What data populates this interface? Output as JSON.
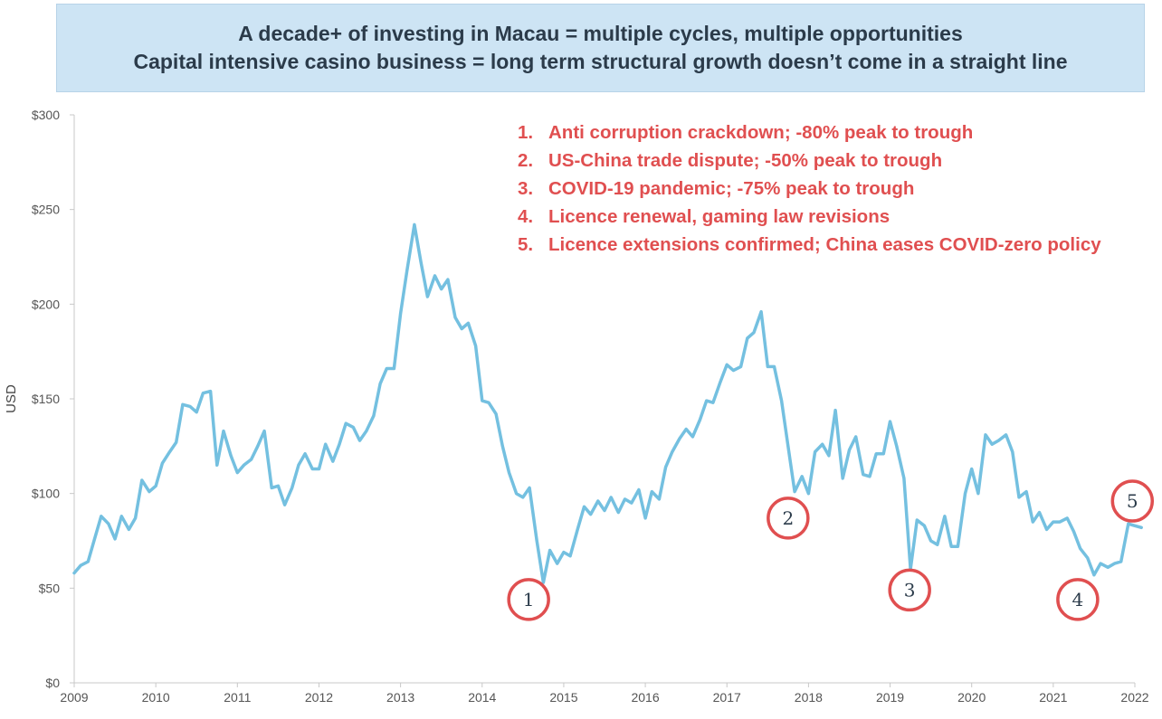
{
  "banner": {
    "line1": "A decade+ of investing in Macau = multiple cycles, multiple opportunities",
    "line2": "Capital intensive casino business = long term structural growth doesn’t come in a straight line"
  },
  "notes": [
    {
      "num": "1.",
      "text": "Anti corruption crackdown; -80% peak to trough"
    },
    {
      "num": "2.",
      "text": "US-China trade dispute; -50% peak to trough"
    },
    {
      "num": "3.",
      "text": "COVID-19 pandemic; -75% peak to trough"
    },
    {
      "num": "4.",
      "text": "Licence renewal, gaming law revisions"
    },
    {
      "num": "5.",
      "text": "Licence extensions confirmed; China eases COVID-zero policy"
    }
  ],
  "chart_data": {
    "type": "line",
    "title": "",
    "xlabel": "",
    "ylabel": "USD",
    "xlim": [
      2009,
      2022.2
    ],
    "ylim": [
      0,
      300
    ],
    "y_ticks": [
      0,
      50,
      100,
      150,
      200,
      250,
      300
    ],
    "y_tick_labels": [
      "$0",
      "$50",
      "$100",
      "$150",
      "$200",
      "$250",
      "$300"
    ],
    "x_ticks": [
      2009,
      2010,
      2011,
      2012,
      2013,
      2014,
      2015,
      2016,
      2017,
      2018,
      2019,
      2020,
      2021,
      2022
    ],
    "x_tick_labels": [
      "2009",
      "2010",
      "2011",
      "2012",
      "2013",
      "2014",
      "2015",
      "2016",
      "2017",
      "2018",
      "2019",
      "2020",
      "2021",
      "2022"
    ],
    "grid": false,
    "line_color": "#74c0e0",
    "series": [
      {
        "x": [
          2009.0,
          2009.08,
          2009.17,
          2009.25,
          2009.33,
          2009.42,
          2009.5,
          2009.58,
          2009.67,
          2009.75,
          2009.83,
          2009.92,
          2010.0,
          2010.08,
          2010.17,
          2010.25,
          2010.33,
          2010.42,
          2010.5,
          2010.58,
          2010.67,
          2010.75,
          2010.83,
          2010.92,
          2011.0,
          2011.08,
          2011.17,
          2011.25,
          2011.33,
          2011.42,
          2011.5,
          2011.58,
          2011.67,
          2011.75,
          2011.83,
          2011.92,
          2012.0,
          2012.08,
          2012.17,
          2012.25,
          2012.33,
          2012.42,
          2012.5,
          2012.58,
          2012.67,
          2012.75,
          2012.83,
          2012.92,
          2013.0,
          2013.08,
          2013.17,
          2013.25,
          2013.33,
          2013.42,
          2013.5,
          2013.58,
          2013.67,
          2013.75,
          2013.83,
          2013.92,
          2014.0,
          2014.08,
          2014.17,
          2014.25,
          2014.33,
          2014.42,
          2014.5,
          2014.58,
          2014.67,
          2014.75,
          2014.83,
          2014.92,
          2015.0,
          2015.08,
          2015.17,
          2015.25,
          2015.33,
          2015.42,
          2015.5,
          2015.58,
          2015.67,
          2015.75,
          2015.83,
          2015.92,
          2016.0,
          2016.08,
          2016.17,
          2016.25,
          2016.33,
          2016.42,
          2016.5,
          2016.58,
          2016.67,
          2016.75,
          2016.83,
          2016.92,
          2017.0,
          2017.08,
          2017.17,
          2017.25,
          2017.33,
          2017.42,
          2017.5,
          2017.58,
          2017.67,
          2017.75,
          2017.83,
          2017.92,
          2018.0,
          2018.08,
          2018.17,
          2018.25,
          2018.33,
          2018.42,
          2018.5,
          2018.58,
          2018.67,
          2018.75,
          2018.83,
          2018.92,
          2019.0,
          2019.08,
          2019.17,
          2019.25,
          2019.33,
          2019.42,
          2019.5,
          2019.58,
          2019.67,
          2019.75,
          2019.83,
          2019.92,
          2020.0,
          2020.08,
          2020.17,
          2020.25,
          2020.33,
          2020.42,
          2020.5,
          2020.58,
          2020.67,
          2020.75,
          2020.83,
          2020.92,
          2021.0,
          2021.08,
          2021.17,
          2021.25,
          2021.33,
          2021.42,
          2021.5,
          2021.58,
          2021.67,
          2021.75,
          2021.83,
          2021.92,
          2022.0,
          2022.08
        ],
        "values": [
          58,
          62,
          64,
          76,
          88,
          84,
          76,
          88,
          81,
          87,
          107,
          101,
          104,
          116,
          122,
          127,
          147,
          146,
          143,
          153,
          154,
          115,
          133,
          120,
          111,
          115,
          118,
          125,
          133,
          103,
          104,
          94,
          103,
          115,
          121,
          113,
          113,
          126,
          117,
          126,
          137,
          135,
          128,
          133,
          141,
          158,
          166,
          166,
          195,
          218,
          242,
          222,
          204,
          215,
          208,
          213,
          193,
          187,
          190,
          178,
          149,
          148,
          142,
          125,
          111,
          100,
          98,
          103,
          75,
          53,
          70,
          63,
          69,
          67,
          81,
          93,
          89,
          96,
          91,
          98,
          90,
          97,
          95,
          102,
          87,
          101,
          97,
          114,
          122,
          129,
          134,
          130,
          139,
          149,
          148,
          159,
          168,
          165,
          167,
          182,
          185,
          196,
          167,
          167,
          149,
          125,
          101,
          109,
          100,
          122,
          126,
          120,
          144,
          108,
          123,
          130,
          110,
          109,
          121,
          121,
          138,
          125,
          108,
          60,
          86,
          83,
          75,
          73,
          88,
          72,
          72,
          100,
          113,
          100,
          131,
          126,
          128,
          131,
          122,
          98,
          101,
          85,
          90,
          81,
          85,
          85,
          87,
          80,
          71,
          66,
          57,
          63,
          61,
          63,
          64,
          84,
          83,
          82
        ]
      }
    ],
    "markers": [
      {
        "label": "1",
        "x": 2014.57,
        "y": 44
      },
      {
        "label": "2",
        "x": 2017.75,
        "y": 87
      },
      {
        "label": "3",
        "x": 2019.24,
        "y": 49
      },
      {
        "label": "4",
        "x": 2021.3,
        "y": 44
      },
      {
        "label": "5",
        "x": 2021.97,
        "y": 96
      }
    ],
    "marker_color": "#e04f50"
  }
}
